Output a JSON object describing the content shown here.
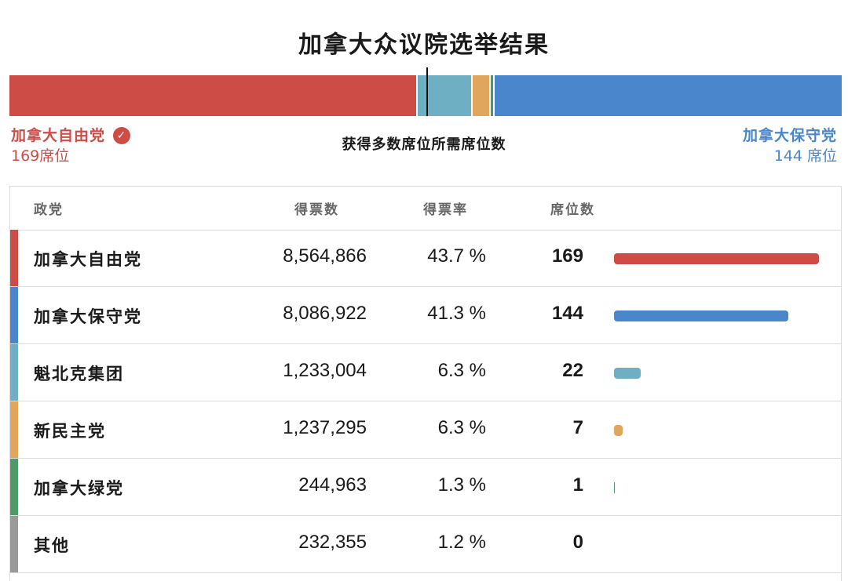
{
  "title": "加拿大众议院选举结果",
  "majority_label": "获得多数席位所需席位数",
  "total_seats": 343,
  "winner": {
    "name": "加拿大自由党",
    "seats_text": "169席位",
    "color": "#cd4c46",
    "icon": "check-circle-icon",
    "check_glyph": "✓"
  },
  "runner_up": {
    "name": "加拿大保守党",
    "seats_text": "144 席位",
    "color": "#4a86cc"
  },
  "table": {
    "headers": {
      "party": "政党",
      "votes": "得票数",
      "rate": "得票率",
      "seats": "席位数"
    },
    "rows": [
      {
        "name": "加拿大自由党",
        "votes": "8,564,866",
        "rate": "43.7 %",
        "seats": "169",
        "color": "#cd4c46"
      },
      {
        "name": "加拿大保守党",
        "votes": "8,086,922",
        "rate": "41.3 %",
        "seats": "144",
        "color": "#4a86cc"
      },
      {
        "name": "魁北克集团",
        "votes": "1,233,004",
        "rate": "6.3 %",
        "seats": "22",
        "color": "#6fafc4"
      },
      {
        "name": "新民主党",
        "votes": "1,237,295",
        "rate": "6.3 %",
        "seats": "7",
        "color": "#e0a65e"
      },
      {
        "name": "加拿大绿党",
        "votes": "244,963",
        "rate": "1.3 %",
        "seats": "1",
        "color": "#4e9a6a"
      },
      {
        "name": "其他",
        "votes": "232,355",
        "rate": "1.2 %",
        "seats": "0",
        "color": "#9a9a9a"
      }
    ]
  },
  "chart_data": {
    "type": "bar",
    "title": "加拿大众议院选举结果",
    "categories": [
      "加拿大自由党",
      "加拿大保守党",
      "魁北克集团",
      "新民主党",
      "加拿大绿党",
      "其他"
    ],
    "values": [
      169,
      144,
      22,
      7,
      1,
      0
    ],
    "votes": [
      8564866,
      8086922,
      1233004,
      1237295,
      244963,
      232355
    ],
    "vote_share_pct": [
      43.7,
      41.3,
      6.3,
      6.3,
      1.3,
      1.2
    ],
    "colors": [
      "#cd4c46",
      "#4a86cc",
      "#6fafc4",
      "#e0a65e",
      "#4e9a6a",
      "#9a9a9a"
    ],
    "majority_threshold": 172
  }
}
